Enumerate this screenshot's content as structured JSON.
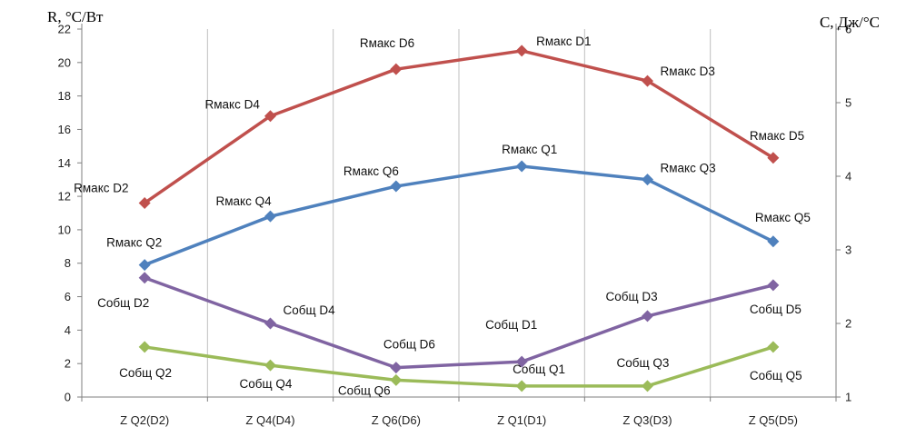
{
  "chart_data": {
    "type": "line",
    "title": "",
    "ylabel_left": "R, °C/Вт",
    "ylabel_right": "C, Дж/°C",
    "ylim_left": [
      0,
      22
    ],
    "ylim_right": [
      1,
      6
    ],
    "yticks_left": [
      "0",
      "2",
      "4",
      "6",
      "8",
      "10",
      "12",
      "14",
      "16",
      "18",
      "20",
      "22"
    ],
    "yticks_right": [
      "1",
      "2",
      "3",
      "4",
      "5",
      "6"
    ],
    "categories": [
      "Z Q2(D2)",
      "Z Q4(D4)",
      "Z Q6(D6)",
      "Z Q1(D1)",
      "Z Q3(D3)",
      "Z Q5(D5)"
    ],
    "grid": "vertical",
    "series": [
      {
        "name": "Rмакс D",
        "axis": "left",
        "color": "#c0504d",
        "values": [
          11.6,
          16.8,
          19.6,
          20.7,
          18.9,
          14.3
        ],
        "labels": [
          "Rмакс D2",
          "Rмакс D4",
          "Rмакс D6",
          "Rмакс D1",
          "Rмакс D3",
          "Rмакс D5"
        ]
      },
      {
        "name": "Rмакс Q",
        "axis": "left",
        "color": "#4f81bd",
        "values": [
          7.9,
          10.8,
          12.6,
          13.8,
          13.0,
          9.3
        ],
        "labels": [
          "Rмакс Q2",
          "Rмакс Q4",
          "Rмакс Q6",
          "Rмакс Q1",
          "Rмакс Q3",
          "Rмакс Q5"
        ]
      },
      {
        "name": "Cобщ D",
        "axis": "right",
        "color": "#8064a2",
        "values": [
          2.62,
          2.0,
          1.4,
          1.48,
          2.1,
          2.52
        ],
        "labels": [
          "Cобщ D2",
          "Cобщ D4",
          "Cобщ D6",
          "Cобщ D1",
          "Cобщ D3",
          "Cобщ D5"
        ]
      },
      {
        "name": "Cобщ Q",
        "axis": "right",
        "color": "#9bbb59",
        "values": [
          1.68,
          1.43,
          1.23,
          1.15,
          1.15,
          1.68
        ],
        "labels": [
          "Cобщ Q2",
          "Cобщ Q4",
          "Cобщ Q6",
          "Cобщ Q1",
          "Cобщ Q3",
          "Cобщ Q5"
        ]
      }
    ]
  }
}
